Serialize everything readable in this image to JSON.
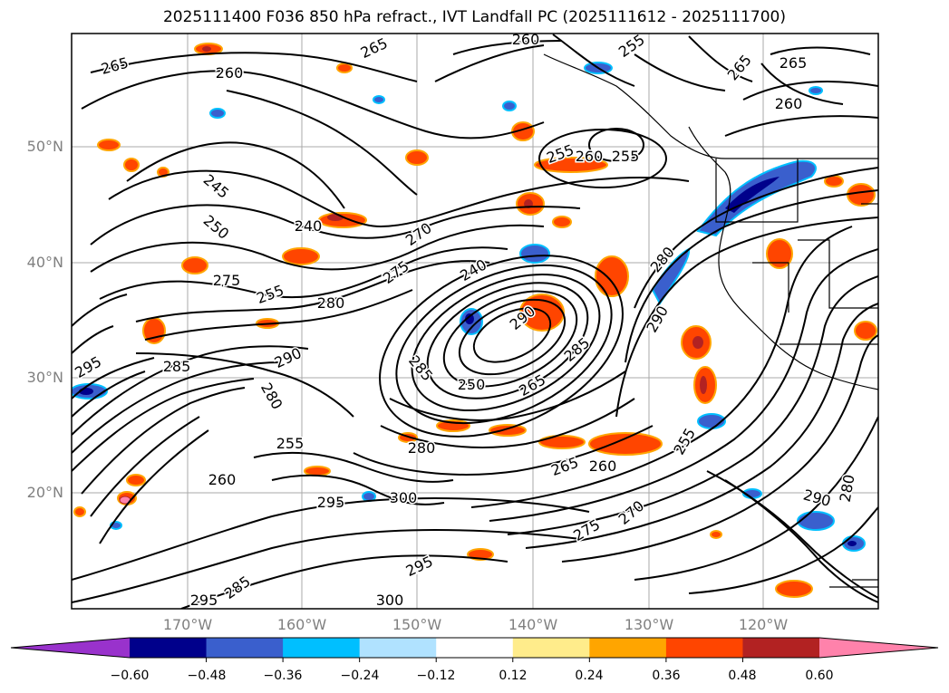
{
  "title": "2025111400 F036 850 hPa refract., IVT Landfall PC (2025111612 - 2025111700)",
  "map": {
    "lat_labels": [
      "50°N",
      "40°N",
      "30°N",
      "20°N"
    ],
    "lon_labels": [
      "170°W",
      "160°W",
      "150°W",
      "140°W",
      "130°W",
      "120°W"
    ],
    "contour_labels": [
      "265",
      "260",
      "265",
      "260",
      "255",
      "265",
      "265",
      "260",
      "255",
      "260",
      "255",
      "245",
      "250",
      "240",
      "275",
      "270",
      "275",
      "280",
      "240",
      "255",
      "290",
      "295",
      "285",
      "290",
      "285",
      "250",
      "265",
      "285",
      "280",
      "280",
      "290",
      "280",
      "255",
      "260",
      "300",
      "295",
      "265",
      "260",
      "255",
      "290",
      "285",
      "295",
      "300",
      "295",
      "275",
      "270",
      "280"
    ]
  },
  "colorbar": {
    "ticks": [
      "−0.60",
      "−0.48",
      "−0.36",
      "−0.24",
      "−0.12",
      "0.12",
      "0.24",
      "0.36",
      "0.48",
      "0.60"
    ],
    "colors": [
      "#9932cc",
      "#00008b",
      "#3a5fcd",
      "#00bfff",
      "#b0e2ff",
      "#ffffff",
      "#ffec8b",
      "#ffa500",
      "#ff4500",
      "#b22222",
      "#ff82ab"
    ]
  }
}
